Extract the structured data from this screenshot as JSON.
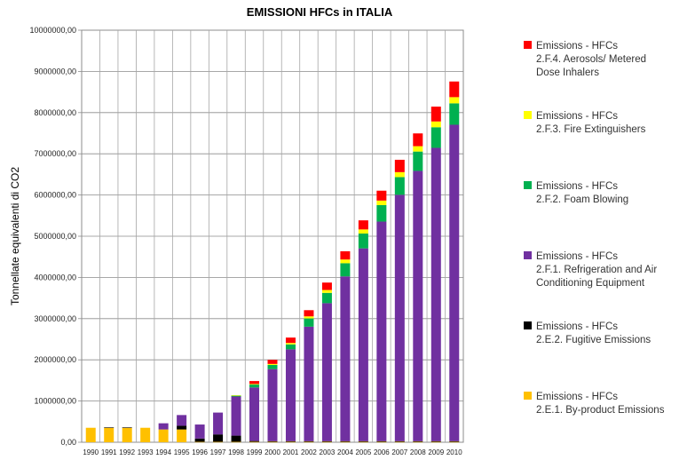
{
  "chart_data": {
    "type": "bar",
    "stacked": true,
    "title": "EMISSIONI HFCs in ITALIA",
    "xlabel": "",
    "ylabel": "Tonnellate equivalenti di CO2",
    "ylim": [
      0,
      10000000
    ],
    "ytick_labels": [
      "0,00",
      "1000000,00",
      "2000000,00",
      "3000000,00",
      "4000000,00",
      "5000000,00",
      "6000000,00",
      "7000000,00",
      "8000000,00",
      "9000000,00",
      "10000000,00"
    ],
    "categories": [
      "1990",
      "1991",
      "1992",
      "1993",
      "1994",
      "1995",
      "1996",
      "1997",
      "1998",
      "1999",
      "2000",
      "2001",
      "2002",
      "2003",
      "2004",
      "2005",
      "2006",
      "2007",
      "2008",
      "2009",
      "2010"
    ],
    "grid": true,
    "legend_position": "right",
    "series": [
      {
        "name": "Emissions - HFCs 2.E.1. By-product Emissions",
        "line1": "Emissions - HFCs",
        "line2": "2.E.1. By-product Emissions",
        "line3": "",
        "color": "#FFC000",
        "values": [
          351000,
          351000,
          351000,
          351000,
          310000,
          310000,
          10000,
          10000,
          10000,
          10000,
          10000,
          10000,
          10000,
          10000,
          10000,
          10000,
          10000,
          10000,
          10000,
          10000,
          10000
        ]
      },
      {
        "name": "Emissions - HFCs 2.E.2. Fugitive Emissions",
        "line1": "Emissions - HFCs",
        "line2": "2.E.2. Fugitive Emissions",
        "line3": "",
        "color": "#000000",
        "values": [
          0,
          10000,
          10000,
          0,
          0,
          90000,
          80000,
          180000,
          150000,
          20000,
          15000,
          15000,
          15000,
          15000,
          15000,
          15000,
          15000,
          15000,
          15000,
          15000,
          15000
        ]
      },
      {
        "name": "Emissions - HFCs 2.F.1. Refrigeration and Air Conditioning Equipment",
        "line1": "Emissions - HFCs",
        "line2": "2.F.1. Refrigeration and Air",
        "line3": "Conditioning Equipment",
        "color": "#7030A0",
        "values": [
          0,
          0,
          0,
          0,
          150000,
          260000,
          340000,
          530000,
          950000,
          1300000,
          1750000,
          2230000,
          2780000,
          3350000,
          4000000,
          4680000,
          5330000,
          5980000,
          6560000,
          7120000,
          7680000
        ]
      },
      {
        "name": "Emissions - HFCs 2.F.2. Foam Blowing",
        "line1": "Emissions - HFCs",
        "line2": "2.F.2. Foam Blowing",
        "line3": "",
        "color": "#00B050",
        "values": [
          0,
          0,
          0,
          0,
          0,
          0,
          0,
          0,
          25000,
          70000,
          100000,
          120000,
          200000,
          250000,
          320000,
          360000,
          400000,
          430000,
          470000,
          500000,
          520000
        ]
      },
      {
        "name": "Emissions - HFCs 2.F.3. Fire Extinguishers",
        "line1": "Emissions - HFCs",
        "line2": "2.F.3. Fire Extinguishers",
        "line3": "",
        "color": "#FFFF00",
        "values": [
          0,
          0,
          0,
          0,
          0,
          0,
          0,
          0,
          5000,
          15000,
          25000,
          35000,
          50000,
          70000,
          90000,
          100000,
          110000,
          120000,
          130000,
          140000,
          150000
        ]
      },
      {
        "name": "Emissions - HFCs 2.F.4. Aerosols/ Metered Dose Inhalers",
        "line1": "Emissions - HFCs",
        "line2": "2.F.4. Aerosols/ Metered",
        "line3": "Dose Inhalers",
        "color": "#FF0000",
        "values": [
          0,
          0,
          0,
          0,
          0,
          0,
          0,
          0,
          0,
          70000,
          100000,
          130000,
          150000,
          180000,
          200000,
          220000,
          240000,
          300000,
          310000,
          360000,
          380000
        ]
      }
    ],
    "legend_order": [
      5,
      4,
      3,
      2,
      1,
      0
    ]
  }
}
